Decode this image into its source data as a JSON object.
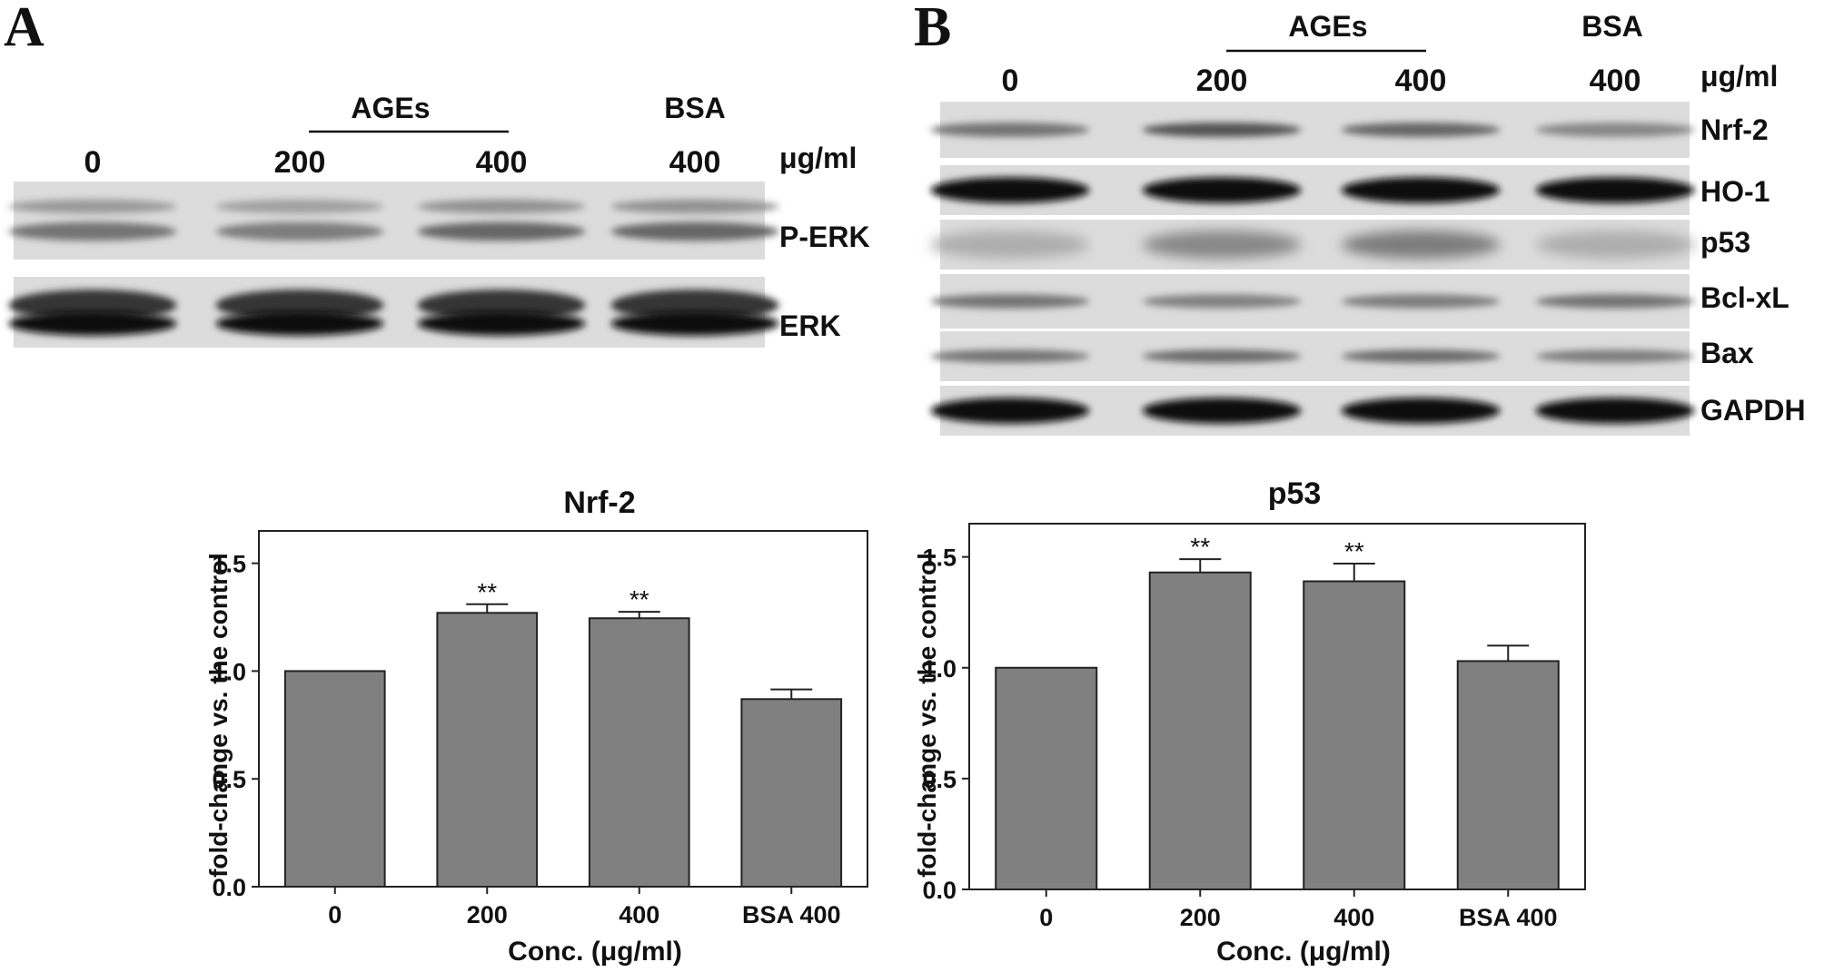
{
  "panel_a": {
    "letter": "A",
    "group_label": "AGEs",
    "conc_labels": [
      "0",
      "200",
      "400",
      "400"
    ],
    "bsa_label": "BSA",
    "unit_label": "μg/ml",
    "blots": [
      {
        "name": "P-ERK",
        "type": "double-thin",
        "intensity": [
          0.55,
          0.5,
          0.62,
          0.62
        ]
      },
      {
        "name": "ERK",
        "type": "double-heavy",
        "intensity": [
          0.95,
          0.95,
          0.95,
          0.95
        ]
      }
    ]
  },
  "panel_b": {
    "letter": "B",
    "group_label": "AGEs",
    "conc_labels": [
      "0",
      "200",
      "400",
      "400"
    ],
    "bsa_label": "BSA",
    "unit_label": "μg/ml",
    "blots": [
      {
        "name": "Nrf-2",
        "type": "single",
        "intensity": [
          0.55,
          0.72,
          0.62,
          0.45
        ]
      },
      {
        "name": "HO-1",
        "type": "heavy",
        "intensity": [
          0.97,
          0.95,
          0.95,
          0.97
        ]
      },
      {
        "name": "p53",
        "type": "diffuse",
        "intensity": [
          0.22,
          0.42,
          0.48,
          0.22
        ]
      },
      {
        "name": "Bcl-xL",
        "type": "single",
        "intensity": [
          0.55,
          0.48,
          0.5,
          0.55
        ]
      },
      {
        "name": "Bax",
        "type": "single",
        "intensity": [
          0.55,
          0.6,
          0.6,
          0.5
        ]
      },
      {
        "name": "GAPDH",
        "type": "heavy",
        "intensity": [
          0.97,
          0.97,
          0.97,
          0.95
        ]
      }
    ]
  },
  "colors": {
    "bar": "#808080",
    "bar_stroke": "#222222",
    "axis": "#222222",
    "blot_bg": "#dcdcdc"
  },
  "chart_data": [
    {
      "type": "bar",
      "title": "Nrf-2",
      "categories": [
        "0",
        "200",
        "400",
        "BSA 400"
      ],
      "values": [
        1.0,
        1.27,
        1.245,
        0.87
      ],
      "errors": [
        0,
        0.04,
        0.03,
        0.045
      ],
      "annotations": [
        "",
        "**",
        "**",
        ""
      ],
      "xlabel": "Conc. (μg/ml)",
      "ylabel": "fold-change vs. the control",
      "ylim": [
        0,
        1.65
      ],
      "yticks": [
        "0.0",
        "0.5",
        "1.0",
        "1.5"
      ],
      "grid": false
    },
    {
      "type": "bar",
      "title": "p53",
      "categories": [
        "0",
        "200",
        "400",
        "BSA 400"
      ],
      "values": [
        1.0,
        1.43,
        1.39,
        1.03
      ],
      "errors": [
        0,
        0.06,
        0.08,
        0.07
      ],
      "annotations": [
        "",
        "**",
        "**",
        ""
      ],
      "xlabel": "Conc. (μg/ml)",
      "ylabel": "fold-change vs. the control",
      "ylim": [
        0,
        1.65
      ],
      "yticks": [
        "0.0",
        "0.5",
        "1.0",
        "1.5"
      ],
      "grid": false
    }
  ]
}
